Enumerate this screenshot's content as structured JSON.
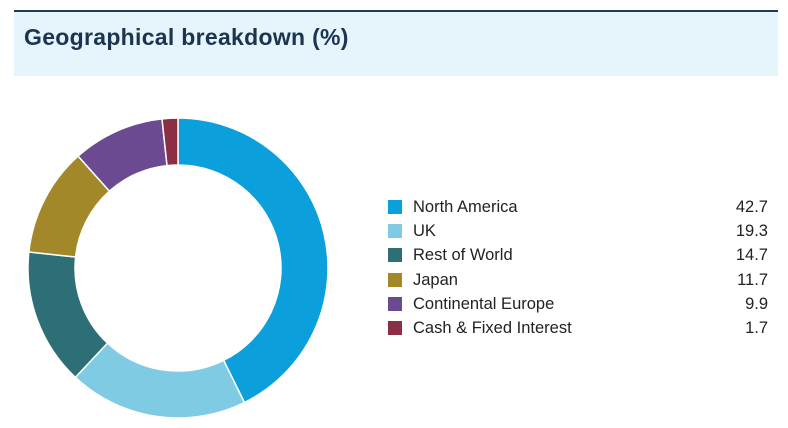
{
  "header": {
    "title": "Geographical breakdown (%)"
  },
  "chart_data": {
    "type": "pie",
    "title": "Geographical breakdown (%)",
    "legend_position": "right",
    "categories": [
      "North America",
      "UK",
      "Rest of World",
      "Japan",
      "Continental Europe",
      "Cash & Fixed Interest"
    ],
    "values": [
      42.7,
      19.3,
      14.7,
      11.7,
      9.9,
      1.7
    ],
    "value_labels": [
      "42.7",
      "19.3",
      "14.7",
      "11.7",
      "9.9",
      "1.7"
    ],
    "colors": [
      "#0b9fdc",
      "#7ecbe3",
      "#2e6e76",
      "#a38829",
      "#6b4a92",
      "#8c2f45"
    ]
  }
}
